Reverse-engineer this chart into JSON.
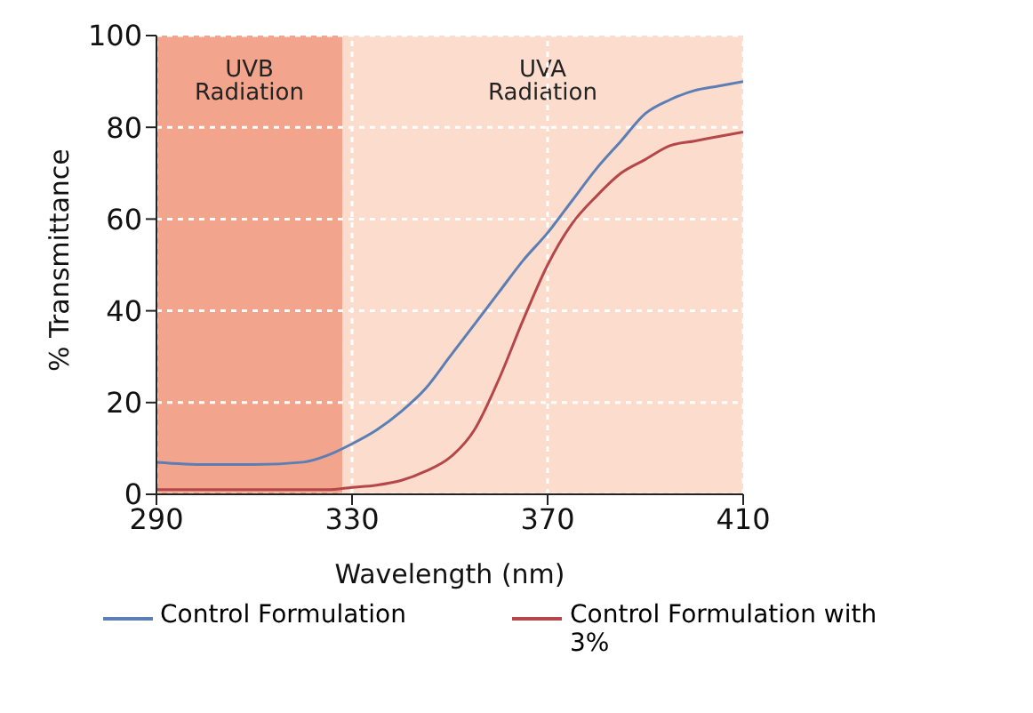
{
  "chart_data": {
    "type": "line",
    "xlabel": "Wavelength (nm)",
    "ylabel": "% Transmittance",
    "x": [
      290,
      300,
      310,
      320,
      325,
      330,
      335,
      340,
      345,
      350,
      355,
      360,
      365,
      370,
      375,
      380,
      385,
      390,
      395,
      400,
      405,
      410
    ],
    "series": [
      {
        "name": "Control Formulation",
        "color": "#5b7fb5",
        "values": [
          7,
          6.5,
          6.5,
          7,
          8.5,
          11,
          14,
          18,
          23,
          30,
          37,
          44,
          51,
          57,
          64,
          71,
          77,
          83,
          86,
          88,
          89,
          90
        ]
      },
      {
        "name": "Control Formulation with 3%",
        "color": "#b5474a",
        "values": [
          1,
          1,
          1,
          1,
          1,
          1.5,
          2,
          3,
          5,
          8,
          14,
          25,
          38,
          50,
          59,
          65,
          70,
          73,
          76,
          77,
          78,
          79
        ]
      }
    ],
    "bands": [
      {
        "axis": "x",
        "from": 290,
        "to": 328,
        "label": "UVB Radiation",
        "color": "#f2a58c"
      },
      {
        "axis": "x",
        "from": 328,
        "to": 410,
        "label": "UVA Radiation",
        "color": "#fbdccd"
      }
    ],
    "xlim": [
      290,
      410
    ],
    "xticks": [
      290,
      330,
      370,
      410
    ],
    "ylim": [
      0,
      100
    ],
    "yticks": [
      0,
      20,
      40,
      60,
      80,
      100
    ],
    "grid": true,
    "legend": "bottom",
    "marker": "none",
    "line_style": "solid"
  }
}
